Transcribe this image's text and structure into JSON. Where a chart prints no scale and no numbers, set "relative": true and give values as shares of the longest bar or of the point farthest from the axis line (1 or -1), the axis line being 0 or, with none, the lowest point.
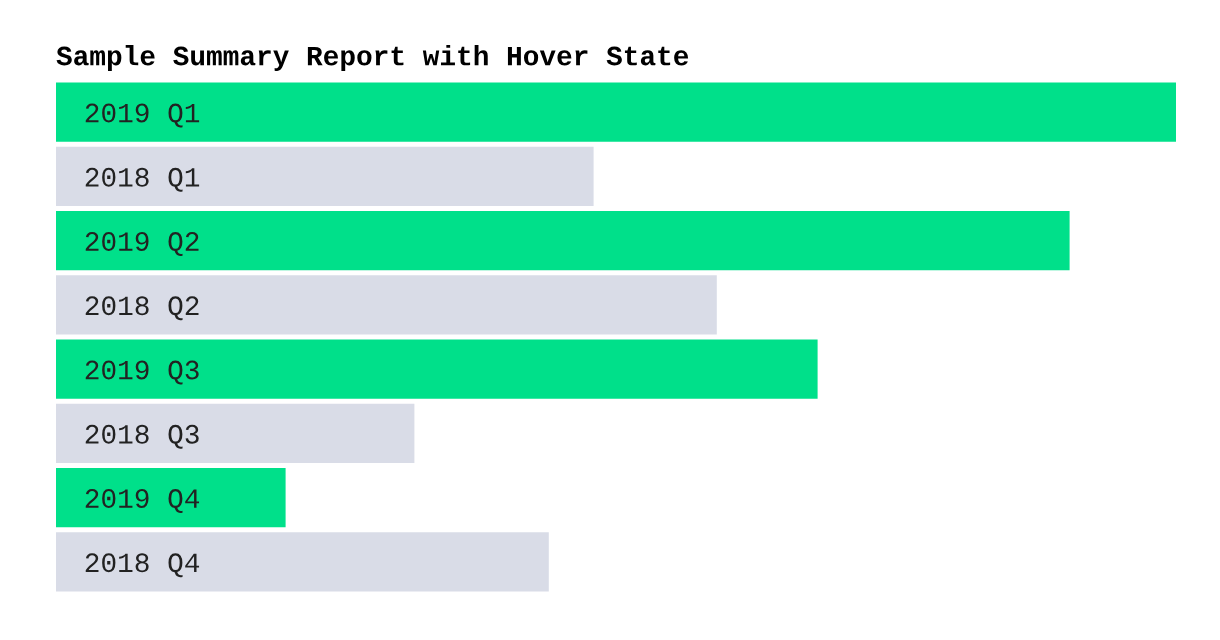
{
  "chart_data": {
    "type": "bar",
    "orientation": "horizontal",
    "relative": true,
    "title": "Sample Summary Report with Hover State",
    "categories": [
      "2019 Q1",
      "2018 Q1",
      "2019 Q2",
      "2018 Q2",
      "2019 Q3",
      "2018 Q3",
      "2019 Q4",
      "2018 Q4"
    ],
    "values": [
      1,
      0.48,
      0.905,
      0.59,
      0.68,
      0.32,
      0.205,
      0.44
    ],
    "colors": [
      "#00e08a",
      "#d9dce7",
      "#00e08a",
      "#d9dce7",
      "#00e08a",
      "#d9dce7",
      "#00e08a",
      "#d9dce7"
    ],
    "grid": false,
    "legend": false
  }
}
